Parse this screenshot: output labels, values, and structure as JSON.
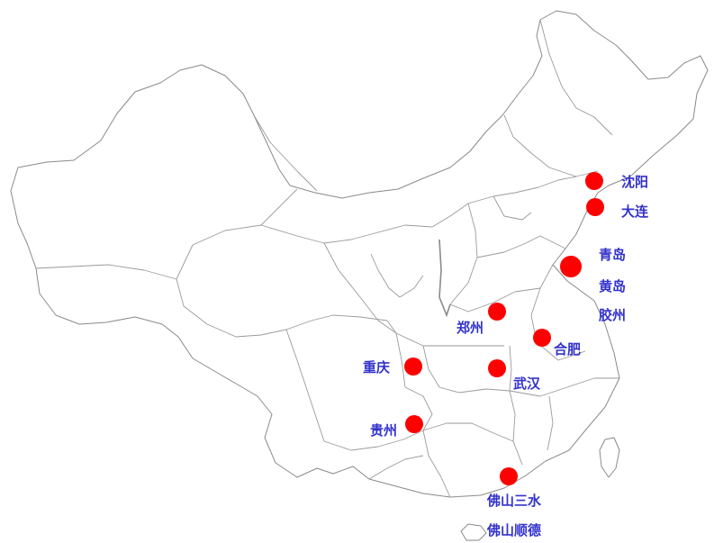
{
  "map": {
    "dot_color": "#ff0000",
    "label_color": "#3333cc",
    "cities": [
      {
        "id": "shenyang",
        "label": "沈阳"
      },
      {
        "id": "dalian",
        "label": "大连"
      },
      {
        "id": "qingdao",
        "label": "青岛"
      },
      {
        "id": "huangdao",
        "label": "黄岛"
      },
      {
        "id": "jiaozhou",
        "label": "胶州"
      },
      {
        "id": "zhengzhou",
        "label": "郑州"
      },
      {
        "id": "hefei",
        "label": "合肥"
      },
      {
        "id": "chongqing",
        "label": "重庆"
      },
      {
        "id": "wuhan",
        "label": "武汉"
      },
      {
        "id": "guizhou",
        "label": "贵州"
      },
      {
        "id": "foshan-sanshui",
        "label": "佛山三水"
      },
      {
        "id": "foshan-shunde",
        "label": "佛山顺德"
      }
    ]
  }
}
